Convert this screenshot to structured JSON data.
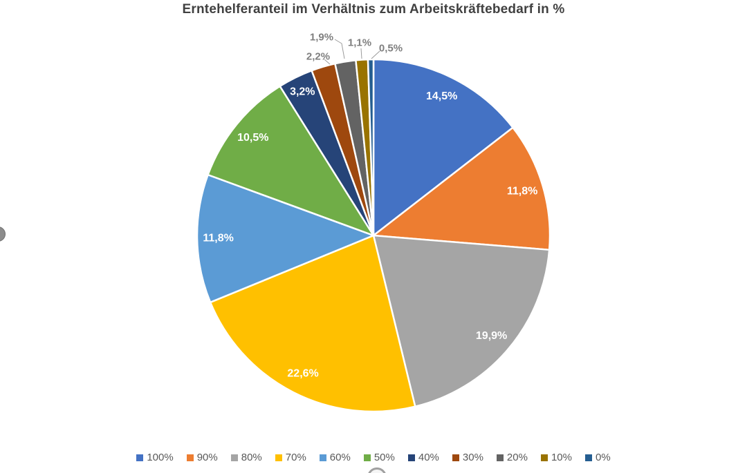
{
  "chart_data": {
    "type": "pie",
    "title": "Erntehelferanteil im Verhältnis zum Arbeitskräftebedarf in %",
    "legend_position": "bottom",
    "start_angle_deg": 0,
    "direction": "clockwise",
    "total": 100.0,
    "slices": [
      {
        "label": "100%",
        "value": 14.5,
        "display": "14,5%",
        "color": "#4472C4",
        "label_placement": "inside"
      },
      {
        "label": "90%",
        "value": 11.8,
        "display": "11,8%",
        "color": "#ED7D31",
        "label_placement": "inside"
      },
      {
        "label": "80%",
        "value": 19.9,
        "display": "19,9%",
        "color": "#A5A5A5",
        "label_placement": "inside"
      },
      {
        "label": "70%",
        "value": 22.6,
        "display": "22,6%",
        "color": "#FFC000",
        "label_placement": "inside"
      },
      {
        "label": "60%",
        "value": 11.8,
        "display": "11,8%",
        "color": "#5B9BD5",
        "label_placement": "inside"
      },
      {
        "label": "50%",
        "value": 10.5,
        "display": "10,5%",
        "color": "#70AD47",
        "label_placement": "inside"
      },
      {
        "label": "40%",
        "value": 3.2,
        "display": "3,2%",
        "color": "#264478",
        "label_placement": "inside"
      },
      {
        "label": "30%",
        "value": 2.2,
        "display": "2,2%",
        "color": "#9E480E",
        "label_placement": "outside"
      },
      {
        "label": "20%",
        "value": 1.9,
        "display": "1,9%",
        "color": "#636363",
        "label_placement": "outside"
      },
      {
        "label": "10%",
        "value": 1.1,
        "display": "1,1%",
        "color": "#997300",
        "label_placement": "outside"
      },
      {
        "label": "0%",
        "value": 0.5,
        "display": "0,5%",
        "color": "#255E91",
        "label_placement": "outside"
      }
    ],
    "colors": {
      "inside_label": "#FFFFFF",
      "outside_label": "#7F7F7F",
      "title": "#404040",
      "legend_text": "#595959",
      "slice_separator": "#FFFFFF"
    }
  }
}
